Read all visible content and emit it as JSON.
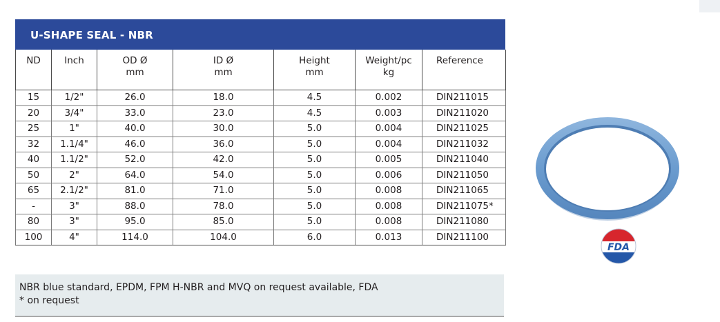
{
  "title": "U-SHAPE SEAL - NBR",
  "headers": [
    {
      "line1": "ND",
      "line2": ""
    },
    {
      "line1": "Inch",
      "line2": ""
    },
    {
      "line1": "OD Ø",
      "line2": "mm"
    },
    {
      "line1": "ID Ø",
      "line2": "mm"
    },
    {
      "line1": "Height",
      "line2": "mm"
    },
    {
      "line1": "Weight/pc",
      "line2": "kg"
    },
    {
      "line1": "Reference",
      "line2": ""
    }
  ],
  "rows": [
    [
      "15",
      "1/2\"",
      "26.0",
      "18.0",
      "4.5",
      "0.002",
      "DIN211015"
    ],
    [
      "20",
      "3/4\"",
      "33.0",
      "23.0",
      "4.5",
      "0.003",
      "DIN211020"
    ],
    [
      "25",
      "1\"",
      "40.0",
      "30.0",
      "5.0",
      "0.004",
      "DIN211025"
    ],
    [
      "32",
      "1.1/4\"",
      "46.0",
      "36.0",
      "5.0",
      "0.004",
      "DIN211032"
    ],
    [
      "40",
      "1.1/2\"",
      "52.0",
      "42.0",
      "5.0",
      "0.005",
      "DIN211040"
    ],
    [
      "50",
      "2\"",
      "64.0",
      "54.0",
      "5.0",
      "0.006",
      "DIN211050"
    ],
    [
      "65",
      "2.1/2\"",
      "81.0",
      "71.0",
      "5.0",
      "0.008",
      "DIN211065"
    ],
    [
      "-",
      "3\"",
      "88.0",
      "78.0",
      "5.0",
      "0.008",
      "DIN211075*"
    ],
    [
      "80",
      "3\"",
      "95.0",
      "85.0",
      "5.0",
      "0.008",
      "DIN211080"
    ],
    [
      "100",
      "4\"",
      "114.0",
      "104.0",
      "6.0",
      "0.013",
      "DIN211100"
    ]
  ],
  "note": {
    "line1": "NBR blue standard, EPDM, FPM H-NBR and MVQ on request available, FDA",
    "line2": "* on request"
  },
  "fda_badge": "FDA",
  "colors": {
    "title_bar": "#2c4a9a",
    "seal_blue": "#6b9ccf",
    "note_bg": "#e6ecee",
    "fda_red": "#d7262d",
    "fda_blue": "#2457a8"
  }
}
